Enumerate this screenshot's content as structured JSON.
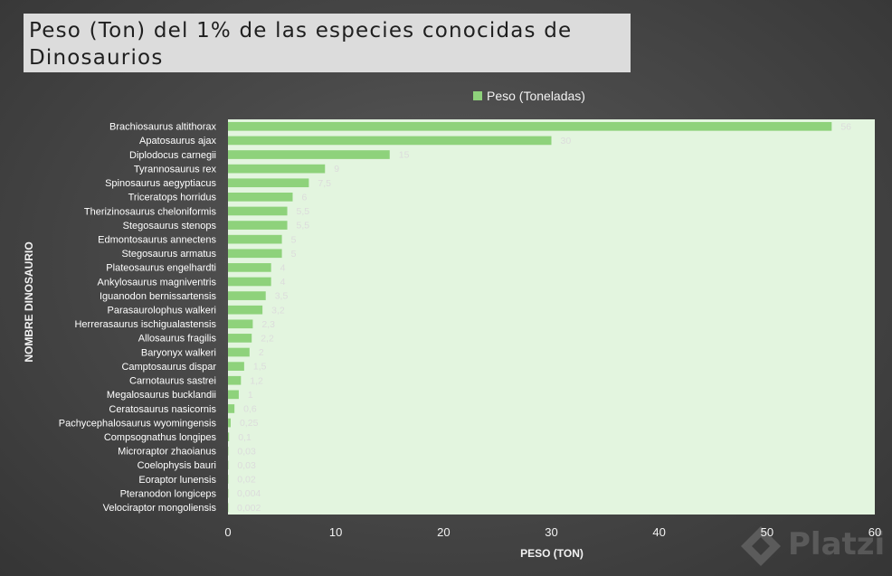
{
  "title": "Peso (Ton) del 1% de las especies conocidas de Dinosaurios",
  "watermark_text": "Platzi",
  "colors": {
    "bar": "#8ed27b",
    "plot_bg": "#e3f5df",
    "axis_text": "#f2f2f2",
    "category_text": "#ffffff",
    "value_label_text": "#dcdcdc"
  },
  "chart_data": {
    "type": "bar",
    "orientation": "horizontal",
    "title": "Peso (Ton) del 1% de las especies conocidas de Dinosaurios",
    "xlabel": "PESO (TON)",
    "ylabel": "NOMBRE DINOSAURIO",
    "xlim": [
      0,
      60
    ],
    "xticks": [
      0,
      10,
      20,
      30,
      40,
      50,
      60
    ],
    "legend_position": "top",
    "grid": false,
    "categories": [
      "Brachiosaurus altithorax",
      "Apatosaurus ajax",
      "Diplodocus carnegii",
      "Tyrannosaurus rex",
      "Spinosaurus aegyptiacus",
      "Triceratops horridus",
      "Therizinosaurus cheloniformis",
      "Stegosaurus stenops",
      "Edmontosaurus annectens",
      "Stegosaurus armatus",
      "Plateosaurus engelhardti",
      "Ankylosaurus magniventris",
      "Iguanodon bernissartensis",
      "Parasaurolophus walkeri",
      "Herrerasaurus ischigualastensis",
      "Allosaurus fragilis",
      "Baryonyx walkeri",
      "Camptosaurus dispar",
      "Carnotaurus sastrei",
      "Megalosaurus bucklandii",
      "Ceratosaurus nasicornis",
      "Pachycephalosaurus wyomingensis",
      "Compsognathus longipes",
      "Microraptor zhaoianus",
      "Coelophysis bauri",
      "Eoraptor lunensis",
      "Pteranodon longiceps",
      "Velociraptor mongoliensis"
    ],
    "series": [
      {
        "name": "Peso (Toneladas)",
        "values": [
          56,
          30,
          15,
          9,
          7.5,
          6,
          5.5,
          5.5,
          5,
          5,
          4,
          4,
          3.5,
          3.2,
          2.3,
          2.2,
          2,
          1.5,
          1.2,
          1,
          0.6,
          0.25,
          0.1,
          0.03,
          0.03,
          0.02,
          0.004,
          0.002
        ],
        "labels": [
          "56",
          "30",
          "15",
          "9",
          "7,5",
          "6",
          "5,5",
          "5,5",
          "5",
          "5",
          "4",
          "4",
          "3,5",
          "3,2",
          "2,3",
          "2,2",
          "2",
          "1,5",
          "1,2",
          "1",
          "0,6",
          "0,25",
          "0,1",
          "0,03",
          "0,03",
          "0,02",
          "0,004",
          "0,002"
        ]
      }
    ]
  }
}
